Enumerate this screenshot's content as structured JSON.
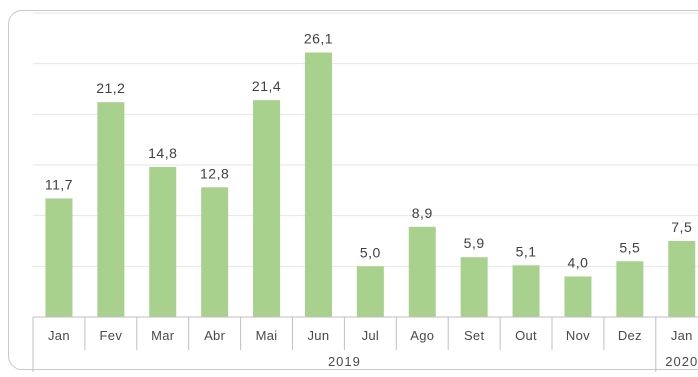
{
  "chart_data": {
    "type": "bar",
    "title": "",
    "xlabel": "",
    "ylabel": "",
    "categories": [
      "Jan",
      "Fev",
      "Mar",
      "Abr",
      "Mai",
      "Jun",
      "Jul",
      "Ago",
      "Set",
      "Out",
      "Nov",
      "Dez",
      "Jan"
    ],
    "value_labels": [
      "11,7",
      "21,2",
      "14,8",
      "12,8",
      "21,4",
      "26,1",
      "5,0",
      "8,9",
      "5,9",
      "5,1",
      "4,0",
      "5,5",
      "7,5"
    ],
    "values": [
      11.7,
      21.2,
      14.8,
      12.8,
      21.4,
      26.1,
      5.0,
      8.9,
      5.9,
      5.1,
      4.0,
      5.5,
      7.5
    ],
    "groups": [
      {
        "label": "2019",
        "from": 0,
        "to": 11
      },
      {
        "label": "2020",
        "from": 12,
        "to": 12
      }
    ],
    "ylim": [
      0,
      30
    ],
    "grid": true,
    "bar_color": "#a9d18e",
    "grid_color": "#e6e6e6",
    "axis_color": "#bfbfbf"
  }
}
